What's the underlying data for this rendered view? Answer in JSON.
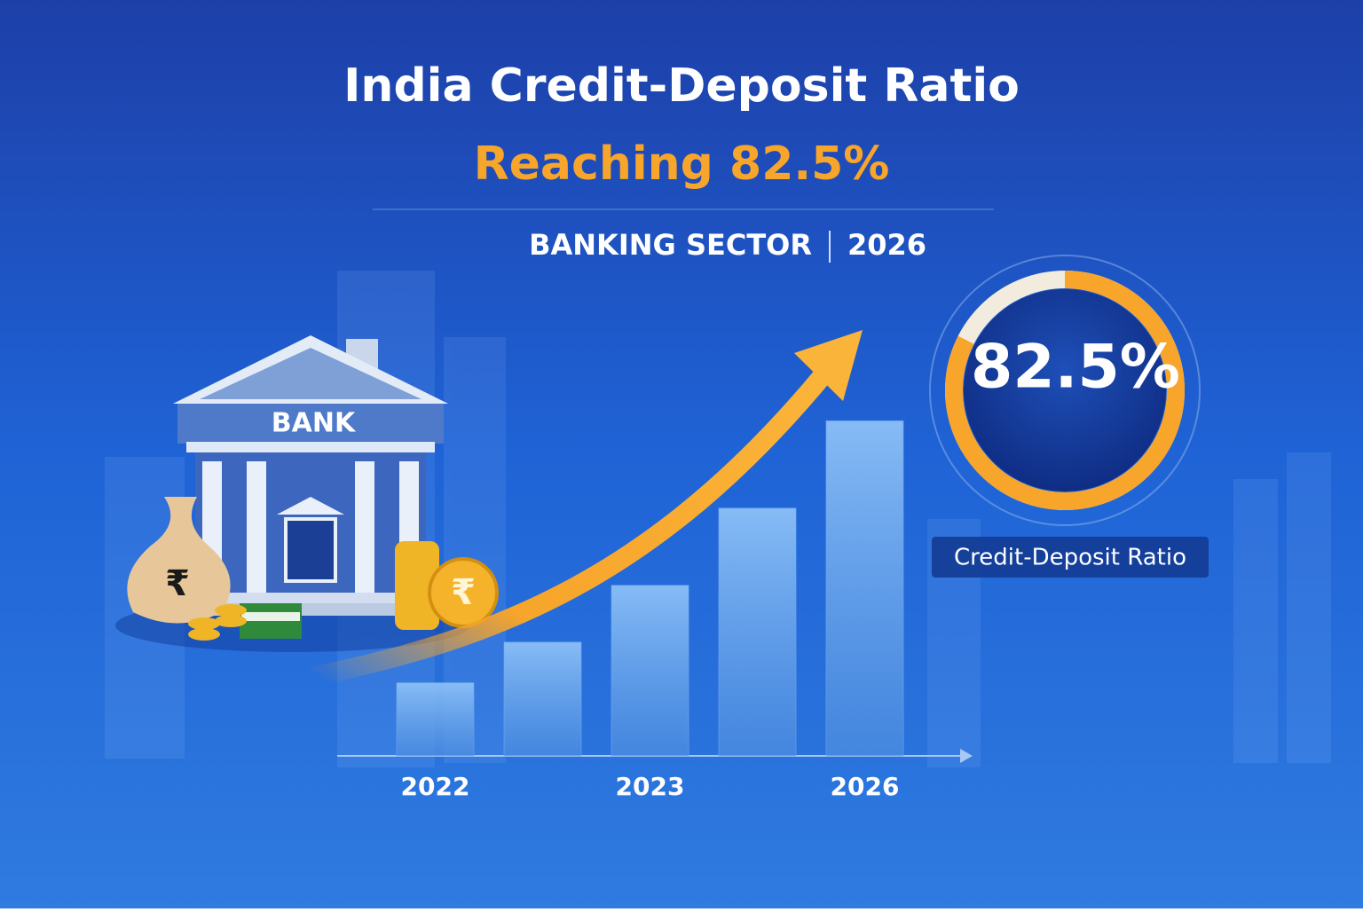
{
  "header": {
    "title": "India Credit-Deposit Ratio",
    "subtitle": "Reaching 82.5%",
    "sector": "BANKING SECTOR",
    "year": "2026"
  },
  "illustration": {
    "bank_sign": "BANK",
    "currency": "₹"
  },
  "chart_data": {
    "type": "bar",
    "categories": [
      "2022",
      null,
      "2023",
      null,
      "2026"
    ],
    "values": [
      18,
      28,
      42,
      61,
      82.5
    ],
    "color": "#6aa6ee",
    "ylim": [
      0,
      90
    ]
  },
  "gauge": {
    "value": 82.5,
    "value_label": "82.5%",
    "max": 100,
    "label": "Credit-Deposit Ratio",
    "color": "#f7a52b"
  }
}
